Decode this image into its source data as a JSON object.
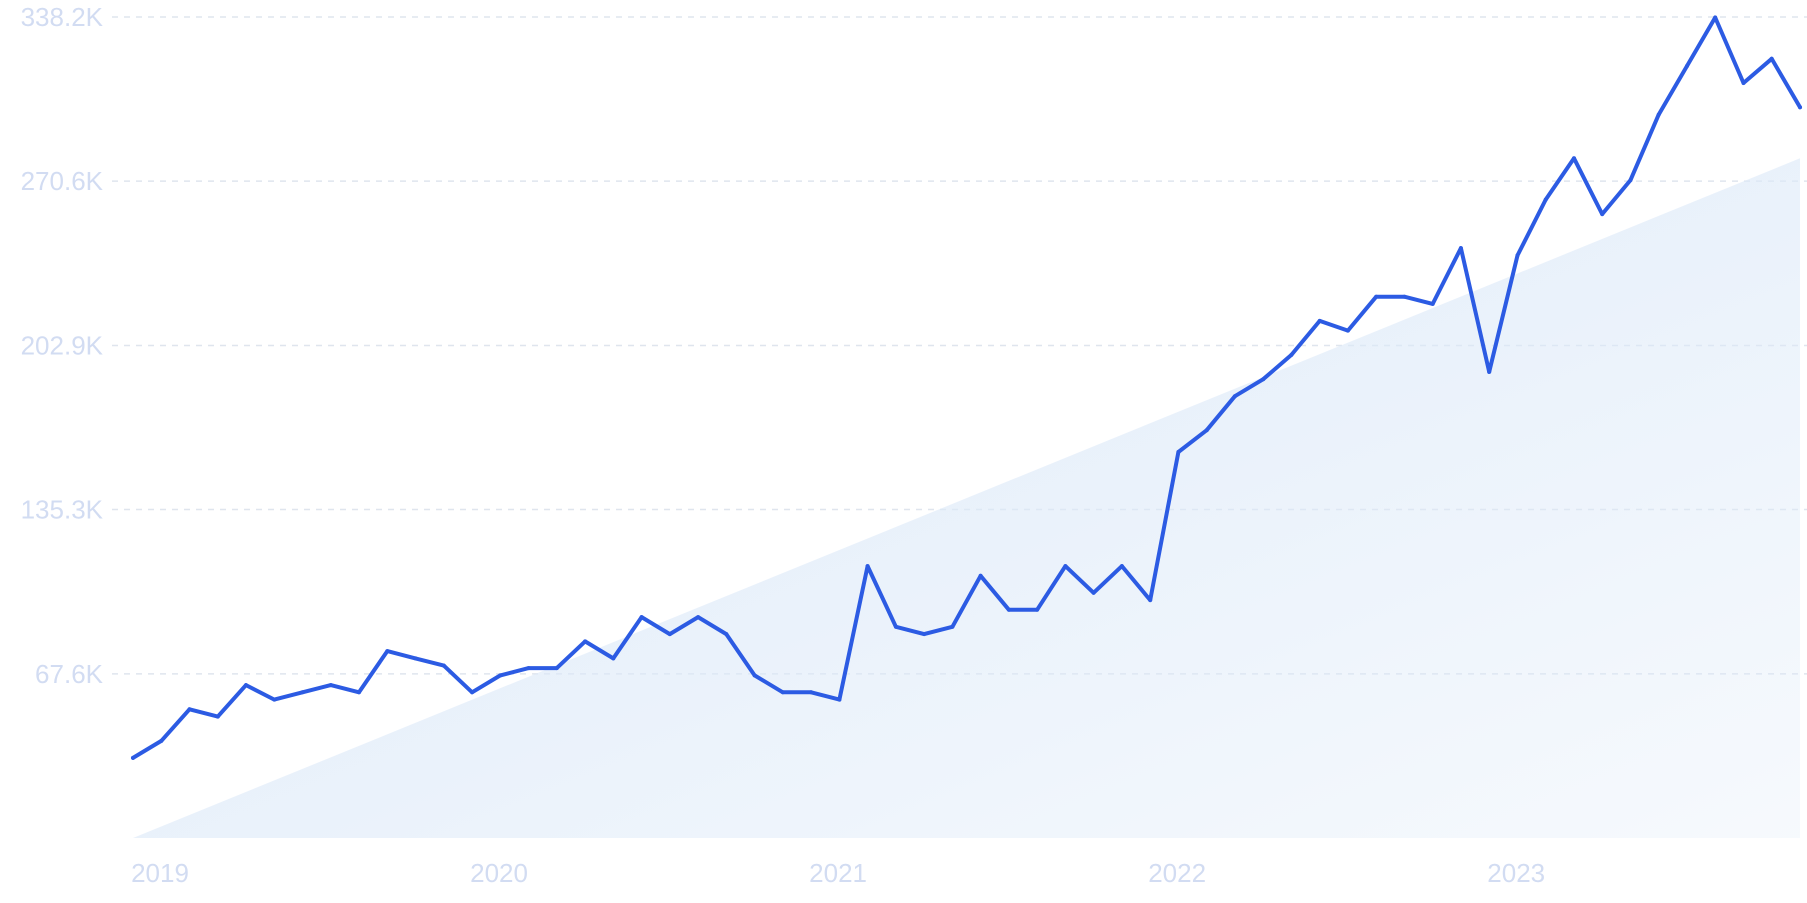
{
  "chart_data": {
    "type": "line",
    "title": "",
    "xlabel": "",
    "ylabel": "",
    "y_ticks": [
      "338.2K",
      "270.6K",
      "202.9K",
      "135.3K",
      "67.6K"
    ],
    "y_tick_values": [
      338200,
      270600,
      202900,
      135300,
      67600
    ],
    "x_ticks": [
      "2019",
      "2020",
      "2021",
      "2022",
      "2023"
    ],
    "x_tick_values": [
      "2019-01",
      "2020-01",
      "2021-01",
      "2022-01",
      "2023-01"
    ],
    "ylim": [
      0,
      338200
    ],
    "xlim": [
      "2019-01",
      "2023-12"
    ],
    "grid": true,
    "trend_area": {
      "color": "#dce9f8",
      "from": {
        "x": "2019-01",
        "y": 0
      },
      "to": {
        "x": "2023-12",
        "y": 280000
      }
    },
    "series": [
      {
        "color": "#2c5be3",
        "points": [
          [
            "2019-01",
            33000
          ],
          [
            "2019-02",
            40000
          ],
          [
            "2019-03",
            53000
          ],
          [
            "2019-04",
            50000
          ],
          [
            "2019-05",
            63000
          ],
          [
            "2019-06",
            57000
          ],
          [
            "2019-07",
            60000
          ],
          [
            "2019-08",
            63000
          ],
          [
            "2019-09",
            60000
          ],
          [
            "2019-10",
            77000
          ],
          [
            "2019-11",
            74000
          ],
          [
            "2019-12",
            71000
          ],
          [
            "2020-01",
            60000
          ],
          [
            "2020-02",
            67000
          ],
          [
            "2020-03",
            70000
          ],
          [
            "2020-04",
            70000
          ],
          [
            "2020-05",
            81000
          ],
          [
            "2020-06",
            74000
          ],
          [
            "2020-07",
            91000
          ],
          [
            "2020-08",
            84000
          ],
          [
            "2020-09",
            91000
          ],
          [
            "2020-10",
            84000
          ],
          [
            "2020-11",
            67000
          ],
          [
            "2020-12",
            60000
          ],
          [
            "2021-01",
            60000
          ],
          [
            "2021-02",
            57000
          ],
          [
            "2021-03",
            112000
          ],
          [
            "2021-04",
            87000
          ],
          [
            "2021-05",
            84000
          ],
          [
            "2021-06",
            87000
          ],
          [
            "2021-07",
            108000
          ],
          [
            "2021-08",
            94000
          ],
          [
            "2021-09",
            94000
          ],
          [
            "2021-10",
            112000
          ],
          [
            "2021-11",
            101000
          ],
          [
            "2021-12",
            112000
          ],
          [
            "2022-01",
            98000
          ],
          [
            "2022-02",
            159000
          ],
          [
            "2022-03",
            168000
          ],
          [
            "2022-04",
            182000
          ],
          [
            "2022-05",
            189000
          ],
          [
            "2022-06",
            199000
          ],
          [
            "2022-07",
            213000
          ],
          [
            "2022-08",
            209000
          ],
          [
            "2022-09",
            223000
          ],
          [
            "2022-10",
            223000
          ],
          [
            "2022-11",
            220000
          ],
          [
            "2022-12",
            243000
          ],
          [
            "2023-01",
            192000
          ],
          [
            "2023-02",
            240000
          ],
          [
            "2023-03",
            263000
          ],
          [
            "2023-04",
            280000
          ],
          [
            "2023-05",
            257000
          ],
          [
            "2023-06",
            271000
          ],
          [
            "2023-07",
            298000
          ],
          [
            "2023-08",
            318000
          ],
          [
            "2023-09",
            338000
          ],
          [
            "2023-10",
            311000
          ],
          [
            "2023-11",
            321000
          ],
          [
            "2023-12",
            301000
          ]
        ]
      }
    ]
  }
}
